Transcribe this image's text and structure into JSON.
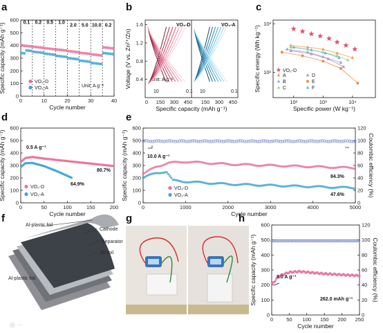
{
  "panel_labels": {
    "a": "a",
    "b": "b",
    "c": "c",
    "d": "d",
    "e": "e",
    "f": "f",
    "g": "g",
    "h": "h"
  },
  "colors": {
    "vo2d": "#e8739a",
    "vo2a": "#3fa6d4",
    "blue_series": "#6b7fc4",
    "axis": "#111111"
  },
  "chart_data": [
    {
      "id": "a",
      "type": "scatter",
      "xlabel": "Cycle number",
      "ylabel": "Specific capacity (mAh g⁻¹)",
      "xlim": [
        0,
        40
      ],
      "ylim": [
        0,
        600
      ],
      "xticks": [
        0,
        10,
        20,
        30,
        40
      ],
      "yticks": [
        0,
        100,
        200,
        300,
        400,
        500,
        600
      ],
      "rate_labels": [
        {
          "x": 2.5,
          "text": "0.1"
        },
        {
          "x": 7.5,
          "text": "0.2"
        },
        {
          "x": 12.5,
          "text": "0.5"
        },
        {
          "x": 17.5,
          "text": "1.0"
        },
        {
          "x": 22.5,
          "text": "2.0"
        },
        {
          "x": 27.5,
          "text": "5.0"
        },
        {
          "x": 32.5,
          "text": "10.0"
        },
        {
          "x": 37.5,
          "text": "0.2"
        }
      ],
      "dividers": [
        5,
        10,
        15,
        20,
        25,
        30,
        35
      ],
      "unit_text": "Unit: A g⁻¹",
      "series": [
        {
          "name": "VO₂-D",
          "color": "#e8739a",
          "plateaus": [
            400,
            390,
            378,
            368,
            355,
            342,
            330,
            385
          ]
        },
        {
          "name": "VO₂-A",
          "color": "#3fa6d4",
          "plateaus": [
            365,
            350,
            335,
            318,
            300,
            280,
            262,
            340
          ]
        }
      ]
    },
    {
      "id": "b",
      "type": "line",
      "xlabel": "Specific capacity (mAh g⁻¹)",
      "ylabel": "Voltage (V vs. Zn²⁺/Zn)",
      "ylim": [
        0,
        1.7
      ],
      "yticks": [
        0.4,
        0.8,
        1.2,
        1.6
      ],
      "left_title": "VO₂-D",
      "right_title": "VO₂-A",
      "left_xticks": [
        "0",
        "150",
        "300",
        "450"
      ],
      "right_xticks": [
        "150",
        "300",
        "450"
      ],
      "unit_text": "Unit: A g⁻¹",
      "left_rate_hi": "10",
      "left_rate_lo": "0.1",
      "right_rate_hi": "10",
      "right_rate_lo": "0.1"
    },
    {
      "id": "c",
      "type": "scatter",
      "log_scale": true,
      "xlabel": "Specific power (W kg⁻¹)",
      "ylabel": "Specific energy (Wh kg⁻¹)",
      "xticks": [
        "10²",
        "10³",
        "10⁴"
      ],
      "yticks": [
        "10²",
        "10³"
      ],
      "series": [
        {
          "name": "VO₂-D",
          "color": "#e0566f",
          "marker": "star",
          "points": [
            [
              100,
              790
            ],
            [
              200,
              700
            ],
            [
              400,
              620
            ],
            [
              800,
              560
            ],
            [
              1600,
              500
            ],
            [
              3000,
              420
            ],
            [
              6000,
              360
            ],
            [
              12000,
              300
            ]
          ]
        },
        {
          "name": "A",
          "color": "#f0a050",
          "marker": "triangle",
          "points": [
            [
              80,
              360
            ],
            [
              300,
              330
            ],
            [
              1000,
              300
            ],
            [
              3000,
              250
            ],
            [
              10000,
              200
            ]
          ]
        },
        {
          "name": "B",
          "color": "#9aaad4",
          "marker": "triangle",
          "points": [
            [
              60,
              300
            ],
            [
              300,
              260
            ],
            [
              1000,
              210
            ],
            [
              4000,
              160
            ]
          ]
        },
        {
          "name": "C",
          "color": "#a8d0a0",
          "marker": "triangle",
          "points": [
            [
              80,
              330
            ],
            [
              300,
              300
            ],
            [
              1000,
              260
            ],
            [
              3000,
              220
            ],
            [
              7000,
              180
            ]
          ]
        },
        {
          "name": "D",
          "color": "#c08cd0",
          "marker": "triangle",
          "points": [
            [
              80,
              280
            ],
            [
              400,
              240
            ],
            [
              1500,
              190
            ],
            [
              5000,
              130
            ]
          ]
        },
        {
          "name": "E",
          "color": "#e8904a",
          "marker": "circle",
          "points": [
            [
              40,
              260
            ],
            [
              200,
              220
            ],
            [
              1000,
              170
            ],
            [
              4000,
              120
            ],
            [
              15000,
              60
            ]
          ]
        },
        {
          "name": "F",
          "color": "#6bbad0",
          "marker": "triangle",
          "points": [
            [
              100,
              330
            ],
            [
              400,
              290
            ],
            [
              1200,
              250
            ],
            [
              3500,
              200
            ]
          ]
        }
      ]
    },
    {
      "id": "d",
      "type": "scatter",
      "xlabel": "Cycle number",
      "ylabel": "Specific capacity (mAh g⁻¹)",
      "xlim": [
        0,
        200
      ],
      "ylim": [
        0,
        600
      ],
      "xticks": [
        0,
        50,
        100,
        150,
        200
      ],
      "yticks": [
        0,
        100,
        200,
        300,
        400,
        500,
        600
      ],
      "current_text": "0.5 A g⁻¹",
      "ret_d": "80.7%",
      "ret_a": "64.9%",
      "series": [
        {
          "name": "VO₂-D",
          "color": "#e8739a",
          "x_end": 200,
          "points": [
            [
              1,
              330
            ],
            [
              10,
              360
            ],
            [
              25,
              368
            ],
            [
              50,
              355
            ],
            [
              100,
              335
            ],
            [
              150,
              315
            ],
            [
              200,
              295
            ]
          ]
        },
        {
          "name": "VO₂-A",
          "color": "#3fa6d4",
          "x_end": 110,
          "points": [
            [
              1,
              290
            ],
            [
              10,
              318
            ],
            [
              25,
              320
            ],
            [
              50,
              295
            ],
            [
              80,
              250
            ],
            [
              110,
              200
            ]
          ]
        }
      ]
    },
    {
      "id": "e",
      "type": "scatter",
      "xlabel": "Cycle number",
      "ylabel": "Specific capacity (mAh g⁻¹)",
      "y2label": "Coulombic efficiency (%)",
      "xlim": [
        0,
        5000
      ],
      "ylim": [
        0,
        600
      ],
      "y2lim": [
        0,
        120
      ],
      "xticks": [
        0,
        1000,
        2000,
        3000,
        4000,
        5000
      ],
      "yticks": [
        0,
        100,
        200,
        300,
        400,
        500,
        600
      ],
      "y2ticks": [
        0,
        20,
        40,
        60,
        80,
        100,
        120
      ],
      "current_text": "10.0 A g⁻¹",
      "ret_d": "84.3%",
      "ret_a": "47.6%",
      "series": [
        {
          "name": "VO₂-D",
          "color": "#e8739a",
          "points": [
            [
              0,
              230
            ],
            [
              300,
              290
            ],
            [
              600,
              320
            ],
            [
              1000,
              330
            ],
            [
              2000,
              310
            ],
            [
              3000,
              300
            ],
            [
              4000,
              290
            ],
            [
              5000,
              280
            ]
          ]
        },
        {
          "name": "VO₂-A",
          "color": "#3fa6d4",
          "points": [
            [
              0,
              200
            ],
            [
              300,
              240
            ],
            [
              550,
              250
            ],
            [
              700,
              180
            ],
            [
              1000,
              170
            ],
            [
              2000,
              150
            ],
            [
              3000,
              140
            ],
            [
              4000,
              130
            ],
            [
              5000,
              120
            ]
          ]
        },
        {
          "name": "CE",
          "color": "#6b7fc4",
          "axis": "y2",
          "points": [
            [
              0,
              99
            ],
            [
              5000,
              99
            ]
          ]
        }
      ]
    },
    {
      "id": "h",
      "type": "scatter",
      "xlabel": "Cycle number",
      "ylabel": "Specific capacity (mAh g⁻¹)",
      "y2label": "Coulombic efficiency (%)",
      "xlim": [
        0,
        250
      ],
      "ylim": [
        0,
        600
      ],
      "y2lim": [
        0,
        120
      ],
      "xticks": [
        0,
        50,
        100,
        150,
        200,
        250
      ],
      "yticks": [
        0,
        100,
        200,
        300,
        400,
        500,
        600
      ],
      "y2ticks": [
        0,
        20,
        40,
        60,
        80,
        100,
        120
      ],
      "current_text": "3.0 A g⁻¹",
      "cap_text": "262.0 mAh g⁻¹",
      "series": [
        {
          "name": "capacity",
          "color": "#e8739a",
          "points": [
            [
              0,
              200
            ],
            [
              20,
              260
            ],
            [
              50,
              285
            ],
            [
              80,
              290
            ],
            [
              150,
              275
            ],
            [
              250,
              262
            ]
          ]
        },
        {
          "name": "CE",
          "color": "#6b7fc4",
          "axis": "y2",
          "points": [
            [
              0,
              99
            ],
            [
              250,
              99
            ]
          ]
        }
      ]
    }
  ],
  "panel_f": {
    "labels": [
      "Al-plastic foil",
      "Cathode",
      "Separator",
      "Zn foil",
      "Al-plastic foil"
    ]
  },
  "panel_g": {
    "photos": 2
  }
}
